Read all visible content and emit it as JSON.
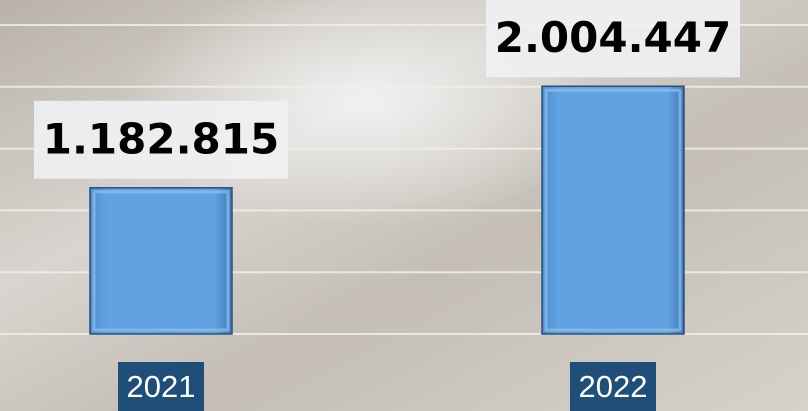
{
  "chart_data": {
    "type": "bar",
    "categories": [
      "2021",
      "2022"
    ],
    "values": [
      1182815,
      2004447
    ],
    "value_labels": [
      "1.182.815",
      "2.004.447"
    ],
    "color": "#5b9bd5",
    "ylim": [
      0,
      2500000
    ],
    "yticks": [
      0,
      500000,
      1000000,
      1500000,
      2000000,
      2500000
    ],
    "grid": true
  }
}
